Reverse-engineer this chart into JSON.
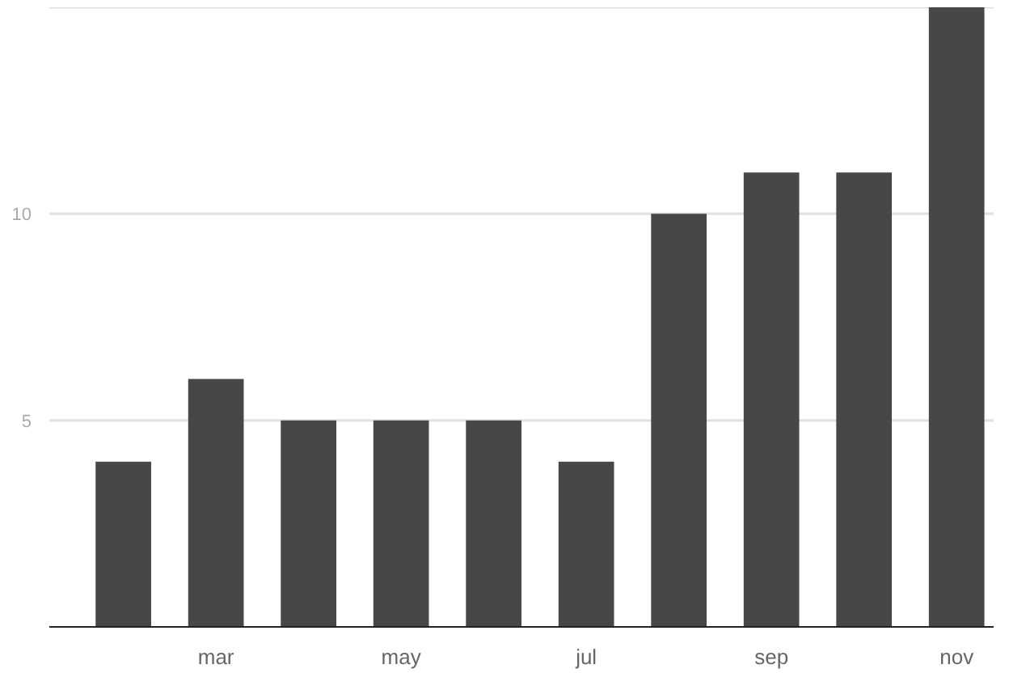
{
  "chart_data": {
    "type": "bar",
    "categories": [
      null,
      "mar",
      null,
      "may",
      null,
      "jul",
      null,
      "sep",
      null,
      "nov"
    ],
    "values": [
      4,
      6,
      5,
      5,
      5,
      4,
      10,
      11,
      11,
      15
    ],
    "color": "#474747",
    "ylim": [
      0,
      15
    ],
    "yticks": [
      5,
      10,
      {
        "value": 15,
        "label": null
      }
    ],
    "grid": "y"
  }
}
